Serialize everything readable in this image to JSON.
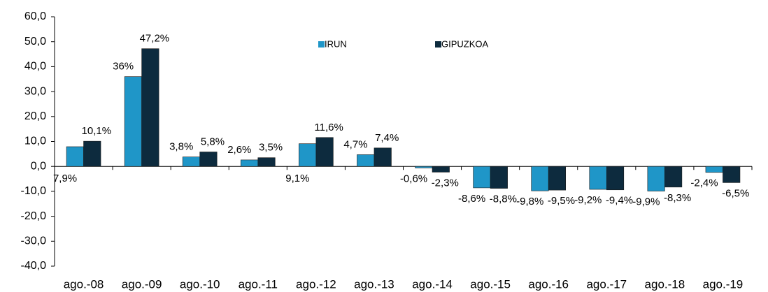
{
  "chart_data": {
    "type": "bar",
    "categories": [
      "ago.-08",
      "ago.-09",
      "ago.-10",
      "ago.-11",
      "ago.-12",
      "ago.-13",
      "ago.-14",
      "ago.-15",
      "ago.-16",
      "ago.-17",
      "ago.-18",
      "ago.-19"
    ],
    "series": [
      {
        "name": "IRUN",
        "color": "#1f96c8",
        "values": [
          7.9,
          36,
          3.8,
          2.6,
          9.1,
          4.7,
          -0.6,
          -8.6,
          -9.8,
          -9.2,
          -9.9,
          -2.4
        ],
        "value_labels": [
          "7,9%",
          "36%",
          "3,8%",
          "2,6%",
          "9,1%",
          "4,7%",
          "-0,6%",
          "-8,6%",
          "-9,8%",
          "-9,2%",
          "-9,9%",
          "-2,4%"
        ]
      },
      {
        "name": "GIPUZKOA",
        "color": "#0d2b3e",
        "values": [
          10.1,
          47.2,
          5.8,
          3.5,
          11.6,
          7.4,
          -2.3,
          -8.8,
          -9.5,
          -9.4,
          -8.3,
          -6.5
        ],
        "value_labels": [
          "10,1%",
          "47,2%",
          "5,8%",
          "3,5%",
          "11,6%",
          "7,4%",
          "-2,3%",
          "-8,8%",
          "-9,5%",
          "-9,4%",
          "-8,3%",
          "-6,5%"
        ]
      }
    ],
    "ylim": [
      -40,
      60
    ],
    "yticks": [
      {
        "value": -40,
        "label": "-40,0"
      },
      {
        "value": -30,
        "label": "-30,0"
      },
      {
        "value": -20,
        "label": "-20,0"
      },
      {
        "value": -10,
        "label": "-10,0"
      },
      {
        "value": 0,
        "label": "0,0"
      },
      {
        "value": 10,
        "label": "10,0"
      },
      {
        "value": 20,
        "label": "20,0"
      },
      {
        "value": 30,
        "label": "30,0"
      },
      {
        "value": 40,
        "label": "40,0"
      },
      {
        "value": 50,
        "label": "50,0"
      },
      {
        "value": 60,
        "label": "60,0"
      }
    ],
    "legend": "top"
  }
}
